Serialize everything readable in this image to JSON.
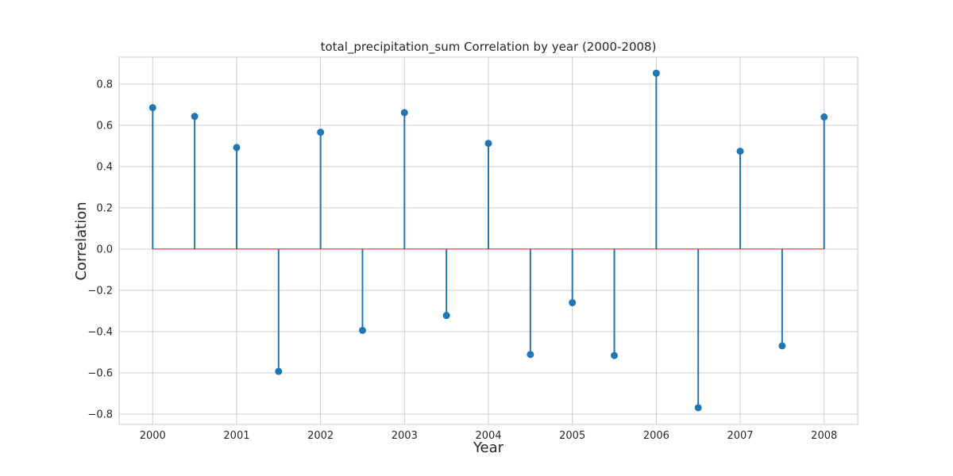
{
  "chart_data": {
    "type": "stem",
    "title": "total_precipitation_sum Correlation by year (2000-2008)",
    "xlabel": "Year",
    "ylabel": "Correlation",
    "xlim": [
      1999.6,
      2008.4
    ],
    "ylim": [
      -0.85,
      0.93
    ],
    "x_ticks": [
      2000,
      2001,
      2002,
      2003,
      2004,
      2005,
      2006,
      2007,
      2008
    ],
    "y_ticks": [
      -0.8,
      -0.6,
      -0.4,
      -0.2,
      0.0,
      0.2,
      0.4,
      0.6,
      0.8
    ],
    "y_tick_labels": [
      "−0.8",
      "−0.6",
      "−0.4",
      "−0.2",
      "0.0",
      "0.2",
      "0.4",
      "0.6",
      "0.8"
    ],
    "grid": true,
    "baseline": 0,
    "x": [
      2000,
      2000.5,
      2001,
      2001.5,
      2002,
      2002.5,
      2003,
      2003.5,
      2004,
      2004.5,
      2005,
      2005.5,
      2006,
      2006.5,
      2007,
      2007.5,
      2008
    ],
    "y": [
      0.685,
      0.643,
      0.492,
      -0.593,
      0.566,
      -0.394,
      0.661,
      -0.322,
      0.512,
      -0.511,
      -0.26,
      -0.516,
      0.852,
      -0.769,
      0.474,
      -0.469,
      0.64
    ],
    "colors": {
      "stem": "#1f77b4",
      "marker": "#1f77b4",
      "baseline": "#d62728",
      "grid": "#cccccc",
      "frame": "#cccccc"
    }
  }
}
